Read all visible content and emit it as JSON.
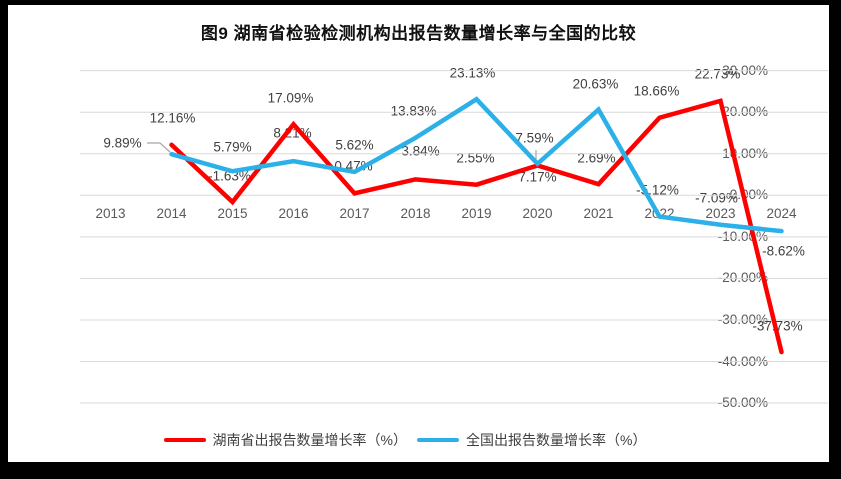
{
  "chart_data": {
    "type": "line",
    "title": "图9 湖南省检验检测机构出报告数量增长率与全国的比较",
    "categories": [
      "2013",
      "2014",
      "2015",
      "2016",
      "2017",
      "2018",
      "2019",
      "2020",
      "2021",
      "2022",
      "2023",
      "2024"
    ],
    "series": [
      {
        "key": "hunan",
        "name": "湖南省出报告数量增长率（%）",
        "color": "#FF0000",
        "start_index": 1,
        "values": [
          12.16,
          -1.63,
          17.09,
          0.47,
          3.84,
          2.55,
          7.17,
          2.69,
          18.66,
          22.73,
          -37.73
        ],
        "label_offsets": [
          [
            1,
            -27
          ],
          [
            -3,
            -26
          ],
          [
            -3,
            -26
          ],
          [
            -1,
            -27
          ],
          [
            5,
            -28
          ],
          [
            -1,
            -27
          ],
          [
            0,
            11
          ],
          [
            -2,
            -26
          ],
          [
            -3,
            -27
          ],
          [
            -3,
            -27
          ],
          [
            -4,
            -26
          ]
        ]
      },
      {
        "key": "national",
        "name": "全国出报告数量增长率（%）",
        "color": "#2BB0E8",
        "start_index": 1,
        "values": [
          9.89,
          5.79,
          8.21,
          5.62,
          13.83,
          23.13,
          7.59,
          20.63,
          -5.12,
          -7.09,
          -8.62
        ],
        "label_offsets": [
          [
            -49,
            -11
          ],
          [
            0,
            -24
          ],
          [
            -1,
            -28
          ],
          [
            0,
            -27
          ],
          [
            -2,
            -27
          ],
          [
            -4,
            -26
          ],
          [
            -3,
            -26
          ],
          [
            -3,
            -26
          ],
          [
            -2,
            -27
          ],
          [
            -4,
            -27
          ],
          [
            2,
            20
          ]
        ]
      }
    ],
    "label_format": "0.00%",
    "ylim": [
      -50,
      30
    ],
    "ytick_step": 10,
    "ytick_labels": [
      "30.00%",
      "20.00%",
      "10.00%",
      "0.00%",
      "-10.00%",
      "-20.00%",
      "-30.00%",
      "-40.00%",
      "-50.00%"
    ],
    "grid": true,
    "gridline_color": "#D9D9D9",
    "axis_text_color": "#595959",
    "data_label_color": "#404040",
    "leader_line_color": "#A6A6A6",
    "legend_position": "bottom"
  }
}
